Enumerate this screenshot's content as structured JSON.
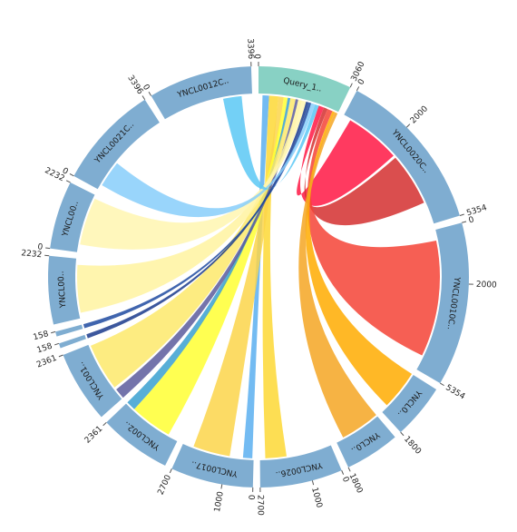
{
  "chart_data": {
    "type": "chord",
    "segments": [
      {
        "name": "Query_1..",
        "length": 3060,
        "color": "#88d1c4",
        "ticks": [
          0,
          3060
        ]
      },
      {
        "name": "YNCL0020C..",
        "length": 5354,
        "color": "#7fadd1",
        "ticks": [
          0,
          2000,
          5354
        ]
      },
      {
        "name": "YNCL0010C..",
        "length": 5354,
        "color": "#7fadd1",
        "ticks": [
          0,
          2000,
          5354
        ]
      },
      {
        "name": "YNCL0..",
        "length": 1800,
        "color": "#7fadd1",
        "ticks": [
          1800
        ]
      },
      {
        "name": "YNCL0..",
        "length": 1800,
        "color": "#7fadd1",
        "ticks": [
          1800
        ]
      },
      {
        "name": "YNCL0026..",
        "length": 2700,
        "color": "#7fadd1",
        "ticks": [
          0,
          1000,
          2700
        ]
      },
      {
        "name": "YNCL0017..",
        "length": 2700,
        "color": "#7fadd1",
        "ticks": [
          0,
          1000,
          2700
        ]
      },
      {
        "name": "YNCL002..",
        "length": 2361,
        "color": "#7fadd1",
        "ticks": [
          2361
        ]
      },
      {
        "name": "YNCL001..",
        "length": 2361,
        "color": "#7fadd1",
        "ticks": [
          2361
        ]
      },
      {
        "name": null,
        "length": 158,
        "color": "#7fadd1",
        "ticks": [
          158
        ]
      },
      {
        "name": null,
        "length": 158,
        "color": "#7fadd1",
        "ticks": [
          158
        ]
      },
      {
        "name": "YNCL00..",
        "length": 2232,
        "color": "#7fadd1",
        "ticks": [
          2232
        ]
      },
      {
        "name": "YNCL00..",
        "length": 2232,
        "color": "#7fadd1",
        "ticks": [
          0,
          2232
        ]
      },
      {
        "name": "YNCL0021C..",
        "length": 3396,
        "color": "#7fadd1",
        "ticks": [
          0,
          3396
        ]
      },
      {
        "name": "YNCL0012C..",
        "length": 3396,
        "color": "#7fadd1",
        "ticks": [
          0,
          3396
        ]
      }
    ],
    "ribbons": [
      {
        "source": [
          150,
          400
        ],
        "target": 6,
        "target_range": [
          50,
          400
        ],
        "color": "#5aaff0"
      },
      {
        "source": [
          400,
          750
        ],
        "target": 5,
        "target_range": [
          1700,
          2500
        ],
        "color": "#fdd835"
      },
      {
        "source": [
          750,
          950
        ],
        "target": 6,
        "target_range": [
          900,
          2300
        ],
        "color": "#fbd54a"
      },
      {
        "source": [
          950,
          1100
        ],
        "target": 7,
        "target_range": [
          400,
          2000
        ],
        "color": "#ffff33"
      },
      {
        "source": [
          1100,
          1200
        ],
        "target": 7,
        "target_range": [
          2000,
          2361
        ],
        "color": "#3aa0d0"
      },
      {
        "source": [
          1200,
          1400
        ],
        "target": 8,
        "target_range": [
          500,
          2300
        ],
        "color": "#fde96b"
      },
      {
        "source": [
          1400,
          1500
        ],
        "target": 8,
        "target_range": [
          0,
          400
        ],
        "color": "#5c5c9c"
      },
      {
        "source": [
          1500,
          1650
        ],
        "target": 11,
        "target_range": [
          200,
          2000
        ],
        "color": "#fff3a0"
      },
      {
        "source": [
          1650,
          1800
        ],
        "target": 12,
        "target_range": [
          300,
          2100
        ],
        "color": "#fff6b0"
      },
      {
        "source": [
          1800,
          1900
        ],
        "target": 9,
        "target_range": [
          0,
          158
        ],
        "color": "#1a3a8c"
      },
      {
        "source": [
          1900,
          2000
        ],
        "target": 10,
        "target_range": [
          0,
          158
        ],
        "color": "#1f4aa0"
      },
      {
        "source": [
          2000,
          2150
        ],
        "target": 13,
        "target_range": [
          200,
          1200
        ],
        "color": "#87cefa"
      },
      {
        "source": [
          2150,
          2300
        ],
        "target": 14,
        "target_range": [
          2300,
          3000
        ],
        "color": "#5bc8f5"
      },
      {
        "source": [
          2300,
          2500
        ],
        "target": 1,
        "target_range": [
          300,
          2400
        ],
        "color": "#ff1744"
      },
      {
        "source": [
          2500,
          2650
        ],
        "target": 1,
        "target_range": [
          2500,
          4500
        ],
        "color": "#d32f2f"
      },
      {
        "source": [
          2650,
          2850
        ],
        "target": 2,
        "target_range": [
          400,
          4800
        ],
        "color": "#f44336"
      },
      {
        "source": [
          2850,
          2950
        ],
        "target": 3,
        "target_range": [
          0,
          1500
        ],
        "color": "#ffab00"
      },
      {
        "source": [
          2950,
          3060
        ],
        "target": 4,
        "target_range": [
          0,
          1500
        ],
        "color": "#f5a623"
      }
    ]
  }
}
